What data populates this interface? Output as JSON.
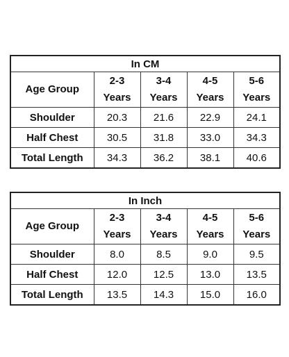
{
  "tables": [
    {
      "title": "In CM",
      "header": [
        "Age Group",
        "2-3 Years",
        "3-4 Years",
        "4-5 Years",
        "5-6 Years"
      ],
      "rows": [
        [
          "Shoulder",
          "20.3",
          "21.6",
          "22.9",
          "24.1"
        ],
        [
          "Half Chest",
          "30.5",
          "31.8",
          "33.0",
          "34.3"
        ],
        [
          "Total Length",
          "34.3",
          "36.2",
          "38.1",
          "40.6"
        ]
      ]
    },
    {
      "title": "In Inch",
      "header": [
        "Age Group",
        "2-3 Years",
        "3-4 Years",
        "4-5 Years",
        "5-6 Years"
      ],
      "rows": [
        [
          "Shoulder",
          "8.0",
          "8.5",
          "9.0",
          "9.5"
        ],
        [
          "Half Chest",
          "12.0",
          "12.5",
          "13.0",
          "13.5"
        ],
        [
          "Total Length",
          "13.5",
          "14.3",
          "15.0",
          "16.0"
        ]
      ]
    }
  ]
}
